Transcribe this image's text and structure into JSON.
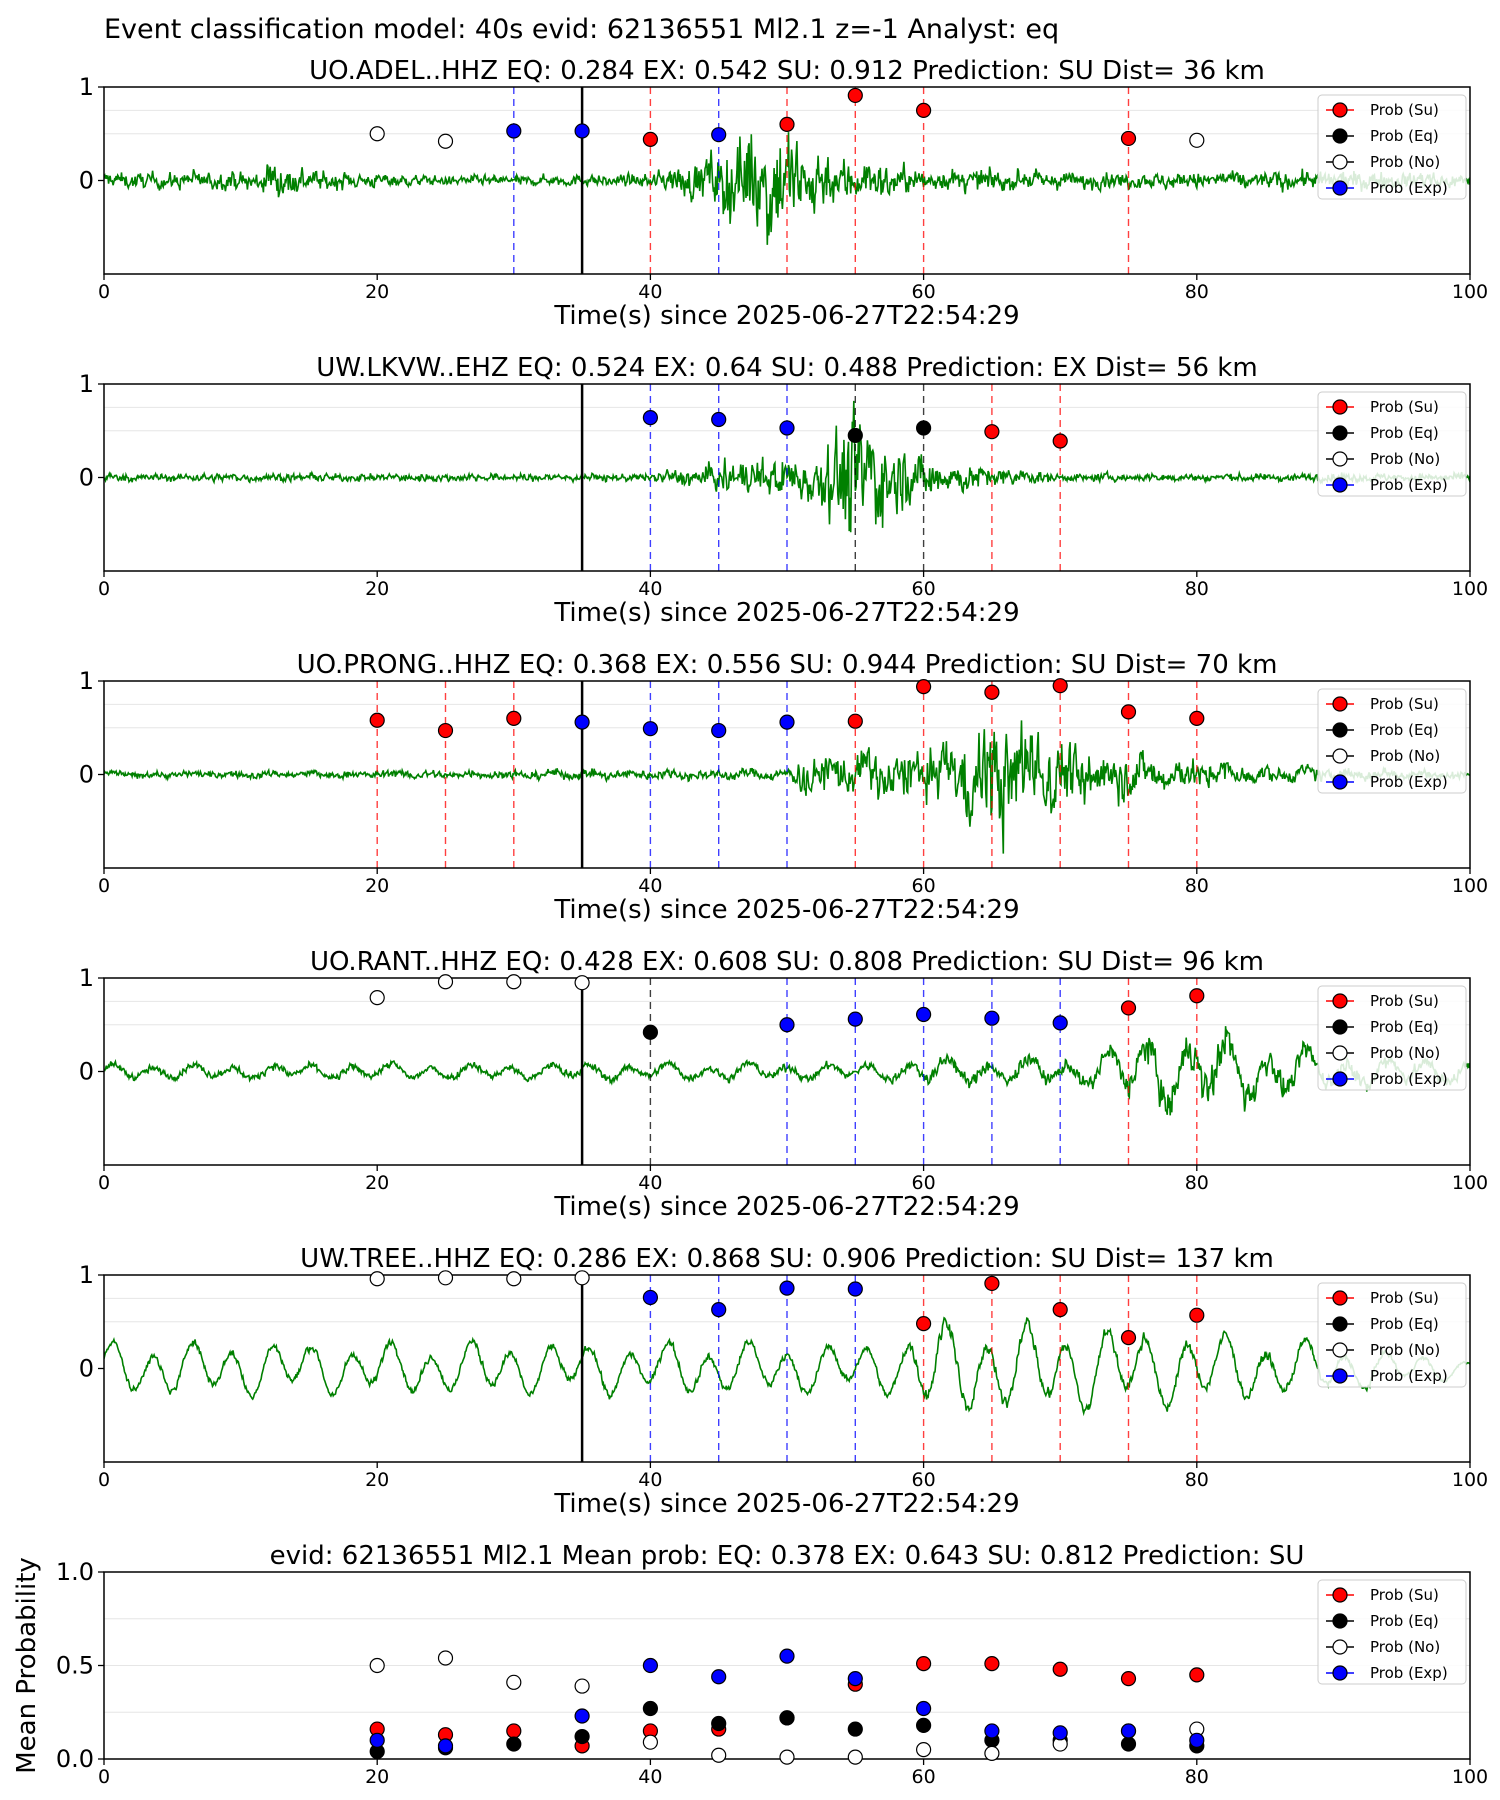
{
  "figure_title": "Event classification model: 40s evid: 62136551 Ml2.1 z=-1 Analyst: eq",
  "x_axis": {
    "label": "Time(s) since 2025-06-27T22:54:29",
    "ticks": [
      0,
      20,
      40,
      60,
      80,
      100
    ],
    "xlim": [
      0,
      100
    ]
  },
  "legend": {
    "placement": "right",
    "entries": [
      {
        "label": "Prob (Su)",
        "marker": "filled",
        "color": "#ff0000"
      },
      {
        "label": "Prob (Eq)",
        "marker": "filled",
        "color": "#000000"
      },
      {
        "label": "Prob (No)",
        "marker": "open",
        "color": "#ffffff"
      },
      {
        "label": "Prob (Exp)",
        "marker": "filled",
        "color": "#0000ff"
      }
    ]
  },
  "colors": {
    "waveform": "#008000",
    "su": "#ff0000",
    "eq": "#000000",
    "no": "#ffffff",
    "exp": "#0000ff",
    "origin_line": "#000000"
  },
  "chart_data": [
    {
      "type": "scatter",
      "title": "UO.ADEL..HHZ   EQ: 0.284  EX: 0.542  SU: 0.912   Prediction: SU    Dist= 36 km",
      "xlabel": "Time(s) since 2025-06-27T22:54:29",
      "ylabel": "",
      "xlim": [
        0,
        100
      ],
      "ylim": [
        -1,
        1
      ],
      "yticks": [
        0,
        1
      ],
      "origin_time": 35,
      "waveform": {
        "series": "normalized seismogram",
        "amplitude_profile": [
          [
            0,
            0.1
          ],
          [
            10,
            0.12
          ],
          [
            13,
            0.25
          ],
          [
            16,
            0.12
          ],
          [
            25,
            0.06
          ],
          [
            40,
            0.08
          ],
          [
            44,
            0.3
          ],
          [
            49,
            0.85
          ],
          [
            53,
            0.35
          ],
          [
            60,
            0.15
          ],
          [
            75,
            0.1
          ],
          [
            90,
            0.12
          ],
          [
            100,
            0.1
          ]
        ],
        "smoothness": 0.12
      },
      "points": [
        {
          "x": 20,
          "y": 0.5,
          "class": "no"
        },
        {
          "x": 25,
          "y": 0.42,
          "class": "no"
        },
        {
          "x": 30,
          "y": 0.53,
          "class": "exp"
        },
        {
          "x": 35,
          "y": 0.53,
          "class": "exp"
        },
        {
          "x": 40,
          "y": 0.44,
          "class": "su"
        },
        {
          "x": 45,
          "y": 0.49,
          "class": "exp"
        },
        {
          "x": 50,
          "y": 0.6,
          "class": "su"
        },
        {
          "x": 55,
          "y": 0.91,
          "class": "su"
        },
        {
          "x": 60,
          "y": 0.75,
          "class": "su"
        },
        {
          "x": 75,
          "y": 0.45,
          "class": "su"
        },
        {
          "x": 80,
          "y": 0.43,
          "class": "no"
        }
      ]
    },
    {
      "type": "scatter",
      "title": "UW.LKVW..EHZ   EQ: 0.524  EX: 0.64  SU: 0.488   Prediction: EX    Dist= 56 km",
      "xlabel": "Time(s) since 2025-06-27T22:54:29",
      "ylabel": "",
      "xlim": [
        0,
        100
      ],
      "ylim": [
        -1,
        1
      ],
      "yticks": [
        0,
        1
      ],
      "origin_time": 35,
      "waveform": {
        "series": "normalized seismogram",
        "amplitude_profile": [
          [
            0,
            0.05
          ],
          [
            40,
            0.05
          ],
          [
            46,
            0.2
          ],
          [
            52,
            0.3
          ],
          [
            55,
            0.9
          ],
          [
            58,
            0.4
          ],
          [
            62,
            0.2
          ],
          [
            70,
            0.05
          ],
          [
            100,
            0.05
          ]
        ],
        "smoothness": 0.1
      },
      "points": [
        {
          "x": 40,
          "y": 0.64,
          "class": "exp"
        },
        {
          "x": 45,
          "y": 0.62,
          "class": "exp"
        },
        {
          "x": 50,
          "y": 0.53,
          "class": "exp"
        },
        {
          "x": 55,
          "y": 0.45,
          "class": "eq"
        },
        {
          "x": 60,
          "y": 0.53,
          "class": "eq"
        },
        {
          "x": 65,
          "y": 0.49,
          "class": "su"
        },
        {
          "x": 70,
          "y": 0.39,
          "class": "su"
        }
      ]
    },
    {
      "type": "scatter",
      "title": "UO.PRONG..HHZ   EQ: 0.368  EX: 0.556  SU: 0.944   Prediction: SU    Dist= 70 km",
      "xlabel": "Time(s) since 2025-06-27T22:54:29",
      "ylabel": "",
      "xlim": [
        0,
        100
      ],
      "ylim": [
        -1,
        1
      ],
      "yticks": [
        0,
        1
      ],
      "origin_time": 35,
      "waveform": {
        "series": "normalized seismogram",
        "amplitude_profile": [
          [
            0,
            0.05
          ],
          [
            20,
            0.06
          ],
          [
            50,
            0.08
          ],
          [
            51,
            0.25
          ],
          [
            56,
            0.35
          ],
          [
            62,
            0.4
          ],
          [
            65,
            0.9
          ],
          [
            70,
            0.5
          ],
          [
            78,
            0.25
          ],
          [
            85,
            0.12
          ],
          [
            100,
            0.05
          ]
        ],
        "smoothness": 0.25
      },
      "points": [
        {
          "x": 20,
          "y": 0.58,
          "class": "su"
        },
        {
          "x": 25,
          "y": 0.47,
          "class": "su"
        },
        {
          "x": 30,
          "y": 0.6,
          "class": "su"
        },
        {
          "x": 35,
          "y": 0.56,
          "class": "exp"
        },
        {
          "x": 40,
          "y": 0.49,
          "class": "exp"
        },
        {
          "x": 45,
          "y": 0.47,
          "class": "exp"
        },
        {
          "x": 50,
          "y": 0.56,
          "class": "exp"
        },
        {
          "x": 55,
          "y": 0.57,
          "class": "su"
        },
        {
          "x": 60,
          "y": 0.94,
          "class": "su"
        },
        {
          "x": 65,
          "y": 0.88,
          "class": "su"
        },
        {
          "x": 70,
          "y": 0.95,
          "class": "su"
        },
        {
          "x": 75,
          "y": 0.67,
          "class": "su"
        },
        {
          "x": 80,
          "y": 0.6,
          "class": "su"
        }
      ]
    },
    {
      "type": "scatter",
      "title": "UO.RANT..HHZ   EQ: 0.428  EX: 0.608  SU: 0.808   Prediction: SU    Dist= 96 km",
      "xlabel": "Time(s) since 2025-06-27T22:54:29",
      "ylabel": "",
      "xlim": [
        0,
        100
      ],
      "ylim": [
        -1,
        1
      ],
      "yticks": [
        0,
        1
      ],
      "origin_time": 35,
      "waveform": {
        "series": "normalized seismogram",
        "amplitude_profile": [
          [
            0,
            0.1
          ],
          [
            35,
            0.12
          ],
          [
            57,
            0.12
          ],
          [
            60,
            0.2
          ],
          [
            72,
            0.2
          ],
          [
            75,
            0.45
          ],
          [
            80,
            0.6
          ],
          [
            88,
            0.3
          ],
          [
            100,
            0.15
          ]
        ],
        "smoothness": 0.6
      },
      "points": [
        {
          "x": 20,
          "y": 0.79,
          "class": "no"
        },
        {
          "x": 25,
          "y": 0.96,
          "class": "no"
        },
        {
          "x": 30,
          "y": 0.96,
          "class": "no"
        },
        {
          "x": 35,
          "y": 0.95,
          "class": "no"
        },
        {
          "x": 40,
          "y": 0.42,
          "class": "eq"
        },
        {
          "x": 50,
          "y": 0.5,
          "class": "exp"
        },
        {
          "x": 55,
          "y": 0.56,
          "class": "exp"
        },
        {
          "x": 60,
          "y": 0.61,
          "class": "exp"
        },
        {
          "x": 65,
          "y": 0.57,
          "class": "exp"
        },
        {
          "x": 70,
          "y": 0.52,
          "class": "exp"
        },
        {
          "x": 75,
          "y": 0.68,
          "class": "su"
        },
        {
          "x": 80,
          "y": 0.81,
          "class": "su"
        }
      ]
    },
    {
      "type": "scatter",
      "title": "UW.TREE..HHZ   EQ: 0.286  EX: 0.868  SU: 0.906   Prediction: SU    Dist= 137 km",
      "xlabel": "Time(s) since 2025-06-27T22:54:29",
      "ylabel": "",
      "xlim": [
        0,
        100
      ],
      "ylim": [
        -1,
        1
      ],
      "yticks": [
        0,
        1
      ],
      "origin_time": 35,
      "waveform": {
        "series": "normalized seismogram",
        "amplitude_profile": [
          [
            0,
            0.3
          ],
          [
            58,
            0.28
          ],
          [
            60,
            0.55
          ],
          [
            65,
            0.5
          ],
          [
            75,
            0.45
          ],
          [
            88,
            0.3
          ],
          [
            100,
            0.1
          ]
        ],
        "smoothness": 0.85
      },
      "points": [
        {
          "x": 20,
          "y": 0.96,
          "class": "no"
        },
        {
          "x": 25,
          "y": 0.97,
          "class": "no"
        },
        {
          "x": 30,
          "y": 0.96,
          "class": "no"
        },
        {
          "x": 35,
          "y": 0.97,
          "class": "no"
        },
        {
          "x": 40,
          "y": 0.76,
          "class": "exp"
        },
        {
          "x": 45,
          "y": 0.63,
          "class": "exp"
        },
        {
          "x": 50,
          "y": 0.86,
          "class": "exp"
        },
        {
          "x": 55,
          "y": 0.85,
          "class": "exp"
        },
        {
          "x": 60,
          "y": 0.48,
          "class": "su"
        },
        {
          "x": 65,
          "y": 0.91,
          "class": "su"
        },
        {
          "x": 70,
          "y": 0.63,
          "class": "su"
        },
        {
          "x": 75,
          "y": 0.33,
          "class": "su"
        },
        {
          "x": 80,
          "y": 0.57,
          "class": "su"
        }
      ]
    },
    {
      "type": "scatter",
      "title": "evid: 62136551  Ml2.1   Mean prob:   EQ: 0.378  EX: 0.643  SU: 0.812   Prediction: SU",
      "xlabel": "",
      "ylabel": "Mean Probability",
      "xlim": [
        0,
        100
      ],
      "ylim": [
        0,
        1
      ],
      "yticks": [
        0.0,
        0.5,
        1.0
      ],
      "x": [
        20,
        25,
        30,
        35,
        40,
        45,
        50,
        55,
        60,
        65,
        70,
        75,
        80
      ],
      "series": [
        {
          "name": "Prob (Su)",
          "class": "su",
          "values": [
            0.16,
            0.13,
            0.15,
            0.07,
            0.15,
            0.16,
            0.22,
            0.4,
            0.51,
            0.51,
            0.48,
            0.43,
            0.45
          ]
        },
        {
          "name": "Prob (Eq)",
          "class": "eq",
          "values": [
            0.04,
            0.06,
            0.08,
            0.12,
            0.27,
            0.19,
            0.22,
            0.16,
            0.18,
            0.1,
            0.1,
            0.08,
            0.07
          ]
        },
        {
          "name": "Prob (No)",
          "class": "no",
          "values": [
            0.5,
            0.54,
            0.41,
            0.39,
            0.09,
            0.02,
            0.01,
            0.01,
            0.05,
            0.03,
            0.08,
            0.15,
            0.16
          ]
        },
        {
          "name": "Prob (Exp)",
          "class": "exp",
          "values": [
            0.1,
            0.07,
            null,
            0.23,
            0.5,
            0.44,
            0.55,
            0.43,
            0.27,
            0.15,
            0.14,
            0.15,
            0.1
          ]
        }
      ]
    }
  ]
}
